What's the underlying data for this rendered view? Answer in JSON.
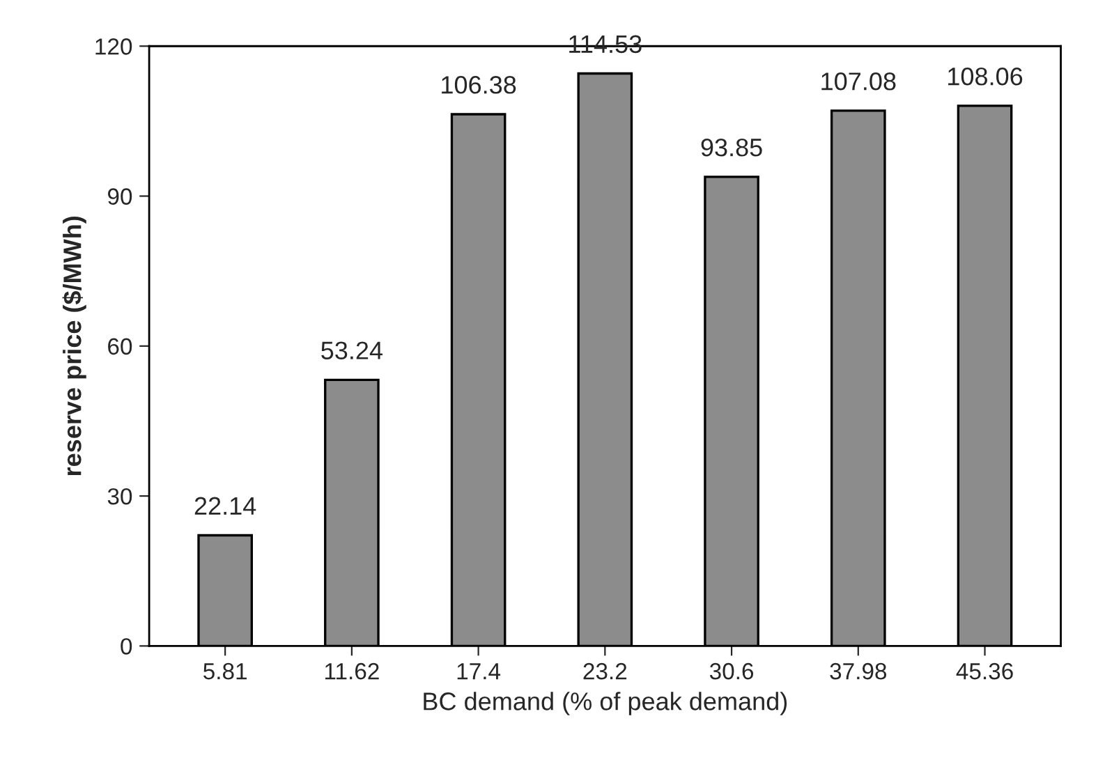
{
  "chart_data": {
    "type": "bar",
    "xlabel": "BC demand (% of peak demand)",
    "ylabel": "reserve price ($/MWh)",
    "categories": [
      "5.81",
      "11.62",
      "17.4",
      "23.2",
      "30.6",
      "37.98",
      "45.36"
    ],
    "values": [
      22.14,
      53.24,
      106.38,
      114.53,
      93.85,
      107.08,
      108.06
    ],
    "color": "#8c8c8c",
    "ylim": [
      0,
      120
    ],
    "yticks": [
      0,
      30,
      60,
      90,
      120
    ],
    "data_labels": true,
    "grid": false,
    "legend": false
  }
}
